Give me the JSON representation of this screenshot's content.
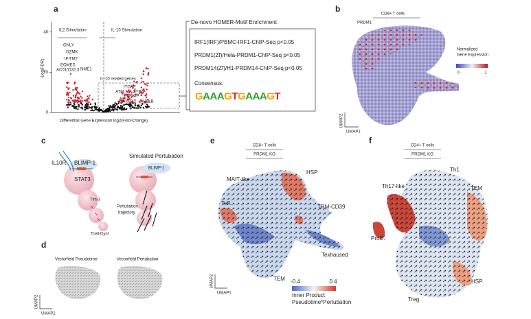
{
  "panel_labels": [
    "a",
    "b",
    "c",
    "d",
    "e",
    "f"
  ],
  "volcano": {
    "left_label": "IL2 Stimulation",
    "right_label": "IL-10 Stimulation",
    "y_label": "-Log(FDR)",
    "x_label": "Differential Gene Expression log2(Fold-Change)",
    "ylim": [
      0,
      44
    ],
    "yticks": [
      0,
      20,
      40
    ],
    "box_label": "IL-10 related genes",
    "left_genes": [
      "GNLY",
      "GZMK",
      "IFITM2",
      "EOMES",
      "AC010132.3",
      "NME1"
    ],
    "right_genes": [
      "ITGAE",
      "ATM",
      "GYPC",
      "MRNIP",
      "ZNF683",
      "HELB"
    ]
  },
  "homer": {
    "title": "De-novo HOMER-Motif Enrichment",
    "motifs": [
      "IRF1(IRF)/PBMC-IRF1-ChIP-Seq p<0.05",
      "PRDM1(Zf)/Hela-PRDM1-ChIP-Seq p<0.05",
      "PRDM14(Zf)/H1-PRDM14-ChIP-Seq p<0.05"
    ],
    "consensus_label": "Consensus:",
    "consensus": "GAAAGTGAAAGT"
  },
  "panel_b": {
    "title": "CD8+ T cells",
    "gene": "PRDM1",
    "legend_title": [
      "Normalized",
      "Gene Expression"
    ],
    "colorbar_ticks": [
      0,
      1
    ],
    "x_label": "UMAP1",
    "y_label": "UMAP2"
  },
  "panel_c": {
    "receptor": "IL10R",
    "tf": "BLIMP-1",
    "stat": "STAT3",
    "marker": "Tim-3",
    "state": "Tcell-Dysf.",
    "sim_title": "Simulated Pertubation",
    "sim_tf": "BLIMP-1",
    "trajectory": [
      "Pertubation",
      "trajectory"
    ]
  },
  "panel_d": {
    "left_title": "Vectorfield Pseudotime",
    "right_title": "Vectorfield Pertubation",
    "x_label": "UMAP1",
    "y_label": "UMAP2"
  },
  "panel_e": {
    "title": "CD8+ T cells",
    "subtitle": "PRDM1-KO",
    "clusters": [
      "HSP",
      "MAIT-like",
      "Teff.",
      "TRM-CD39",
      "Texhaused",
      "TEM"
    ],
    "x_label": "UMAP1",
    "y_label": "UMAP2",
    "colorbar_ticks": [
      -0.4,
      0.4
    ],
    "legend_title": [
      "Inner Product",
      "Pseudotime*Pertubation"
    ]
  },
  "panel_f": {
    "title": "CD4+ T cells",
    "subtitle": "PRDM1-KO",
    "clusters": [
      "Th1",
      "Th17-like",
      "TEM",
      "Prolif.",
      "HSP",
      "Treg"
    ]
  }
}
